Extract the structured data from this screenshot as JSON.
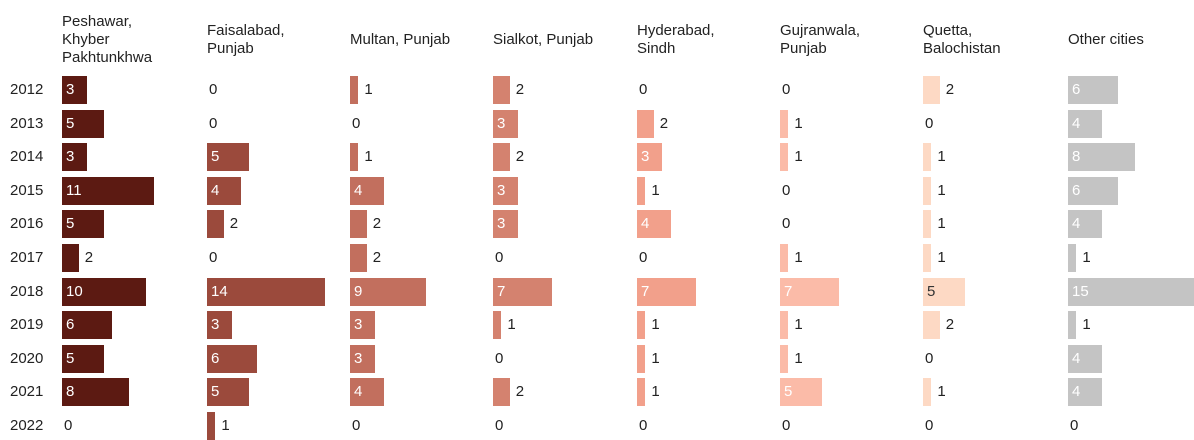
{
  "chart_data": {
    "type": "bar",
    "orientation": "horizontal",
    "categories": [
      "2012",
      "2013",
      "2014",
      "2015",
      "2016",
      "2017",
      "2018",
      "2019",
      "2020",
      "2021",
      "2022"
    ],
    "series": [
      {
        "name": "Peshawar, Khyber Pakhtunkhwa",
        "color": "#5c1a12",
        "values": [
          3,
          5,
          3,
          11,
          5,
          2,
          10,
          6,
          5,
          8,
          0
        ]
      },
      {
        "name": "Faisalabad, Punjab",
        "color": "#9b4a3c",
        "values": [
          0,
          0,
          5,
          4,
          2,
          0,
          14,
          3,
          6,
          5,
          1
        ]
      },
      {
        "name": "Multan, Punjab",
        "color": "#c26f5e",
        "values": [
          1,
          0,
          1,
          4,
          2,
          2,
          9,
          3,
          3,
          4,
          0
        ]
      },
      {
        "name": "Sialkot, Punjab",
        "color": "#d4826f",
        "values": [
          2,
          3,
          2,
          3,
          3,
          0,
          7,
          1,
          0,
          2,
          0
        ]
      },
      {
        "name": "Hyderabad, Sindh",
        "color": "#f2a08b",
        "values": [
          0,
          2,
          3,
          1,
          4,
          0,
          7,
          1,
          1,
          1,
          0
        ]
      },
      {
        "name": "Gujranwala, Punjab",
        "color": "#fbbba8",
        "values": [
          0,
          1,
          1,
          0,
          0,
          1,
          7,
          1,
          1,
          5,
          0
        ]
      },
      {
        "name": "Quetta, Balochistan",
        "color": "#fdd9c4",
        "values": [
          2,
          0,
          1,
          1,
          1,
          1,
          5,
          2,
          0,
          1,
          0
        ]
      },
      {
        "name": "Other cities",
        "color": "#c4c4c4",
        "values": [
          6,
          4,
          8,
          6,
          4,
          1,
          15,
          1,
          4,
          4,
          0
        ]
      }
    ]
  }
}
